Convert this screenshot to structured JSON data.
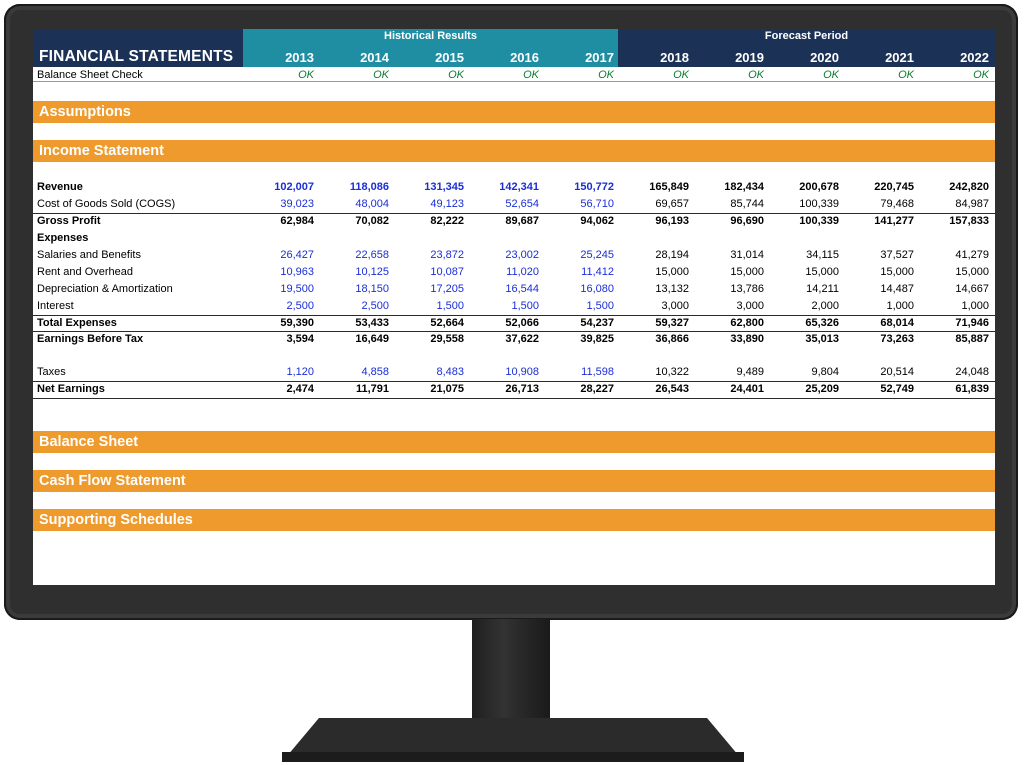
{
  "header": {
    "title": "FINANCIAL STATEMENTS",
    "historical_label": "Historical Results",
    "forecast_label": "Forecast Period",
    "years": [
      "2013",
      "2014",
      "2015",
      "2016",
      "2017",
      "2018",
      "2019",
      "2020",
      "2021",
      "2022"
    ]
  },
  "check": {
    "label": "Balance Sheet Check",
    "values": [
      "OK",
      "OK",
      "OK",
      "OK",
      "OK",
      "OK",
      "OK",
      "OK",
      "OK",
      "OK"
    ]
  },
  "sections": {
    "assumptions": "Assumptions",
    "income_statement": "Income Statement",
    "balance_sheet": "Balance Sheet",
    "cash_flow": "Cash Flow Statement",
    "supporting": "Supporting Schedules"
  },
  "income": {
    "revenue": {
      "label": "Revenue",
      "values": [
        "102,007",
        "118,086",
        "131,345",
        "142,341",
        "150,772",
        "165,849",
        "182,434",
        "200,678",
        "220,745",
        "242,820"
      ]
    },
    "cogs": {
      "label": "Cost of Goods Sold (COGS)",
      "values": [
        "39,023",
        "48,004",
        "49,123",
        "52,654",
        "56,710",
        "69,657",
        "85,744",
        "100,339",
        "79,468",
        "84,987"
      ]
    },
    "gross_profit": {
      "label": "Gross Profit",
      "values": [
        "62,984",
        "70,082",
        "82,222",
        "89,687",
        "94,062",
        "96,193",
        "96,690",
        "100,339",
        "141,277",
        "157,833"
      ]
    },
    "expenses_header": {
      "label": "Expenses"
    },
    "salaries": {
      "label": "Salaries and Benefits",
      "values": [
        "26,427",
        "22,658",
        "23,872",
        "23,002",
        "25,245",
        "28,194",
        "31,014",
        "34,115",
        "37,527",
        "41,279"
      ]
    },
    "rent": {
      "label": "Rent and Overhead",
      "values": [
        "10,963",
        "10,125",
        "10,087",
        "11,020",
        "11,412",
        "15,000",
        "15,000",
        "15,000",
        "15,000",
        "15,000"
      ]
    },
    "depreciation": {
      "label": "Depreciation & Amortization",
      "values": [
        "19,500",
        "18,150",
        "17,205",
        "16,544",
        "16,080",
        "13,132",
        "13,786",
        "14,211",
        "14,487",
        "14,667"
      ]
    },
    "interest": {
      "label": "Interest",
      "values": [
        "2,500",
        "2,500",
        "1,500",
        "1,500",
        "1,500",
        "3,000",
        "3,000",
        "2,000",
        "1,000",
        "1,000"
      ]
    },
    "total_expenses": {
      "label": "Total Expenses",
      "values": [
        "59,390",
        "53,433",
        "52,664",
        "52,066",
        "54,237",
        "59,327",
        "62,800",
        "65,326",
        "68,014",
        "71,946"
      ]
    },
    "ebt": {
      "label": "Earnings Before Tax",
      "values": [
        "3,594",
        "16,649",
        "29,558",
        "37,622",
        "39,825",
        "36,866",
        "33,890",
        "35,013",
        "73,263",
        "85,887"
      ]
    },
    "taxes": {
      "label": "Taxes",
      "values": [
        "1,120",
        "4,858",
        "8,483",
        "10,908",
        "11,598",
        "10,322",
        "9,489",
        "9,804",
        "20,514",
        "24,048"
      ]
    },
    "net_earnings": {
      "label": "Net Earnings",
      "values": [
        "2,474",
        "11,791",
        "21,075",
        "26,713",
        "28,227",
        "26,543",
        "24,401",
        "25,209",
        "52,749",
        "61,839"
      ]
    }
  },
  "colors": {
    "navy": "#1b3156",
    "teal": "#1f8ea3",
    "orange": "#ee9a2c",
    "input_blue": "#1a2ed6",
    "ok_green": "#0a7d2c"
  }
}
